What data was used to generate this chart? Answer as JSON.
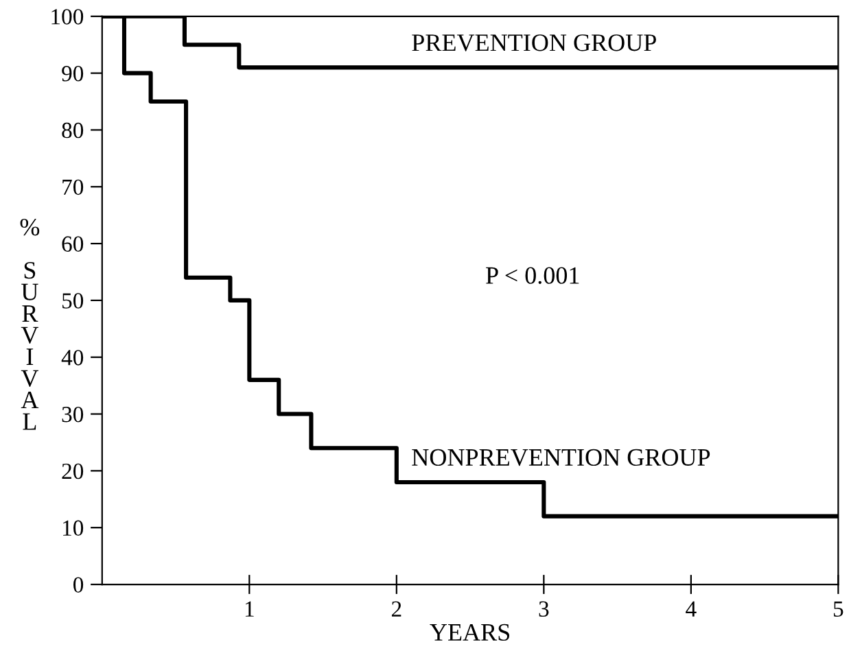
{
  "chart_data": {
    "type": "step",
    "xlabel": "YEARS",
    "ylabel": "% SURVIVAL",
    "series": [
      {
        "name": "PREVENTION GROUP",
        "color": "#000000",
        "x": [
          0,
          0.56,
          0.93,
          5
        ],
        "values": [
          100,
          95,
          91,
          91
        ]
      },
      {
        "name": "NONPREVENTION GROUP",
        "color": "#000000",
        "x": [
          0,
          0.15,
          0.33,
          0.57,
          0.87,
          1.0,
          1.2,
          1.42,
          2.0,
          3.0,
          5
        ],
        "values": [
          100,
          90,
          85,
          54,
          50,
          36,
          30,
          24,
          18,
          12,
          12
        ]
      }
    ],
    "annotations": [
      {
        "text": "P < 0.001"
      }
    ],
    "xlim": [
      0,
      5
    ],
    "ylim": [
      0,
      100
    ],
    "xticks": [
      1,
      2,
      3,
      4,
      5
    ],
    "yticks": [
      0,
      10,
      20,
      30,
      40,
      50,
      60,
      70,
      80,
      90,
      100
    ],
    "grid": false,
    "legend": false
  }
}
